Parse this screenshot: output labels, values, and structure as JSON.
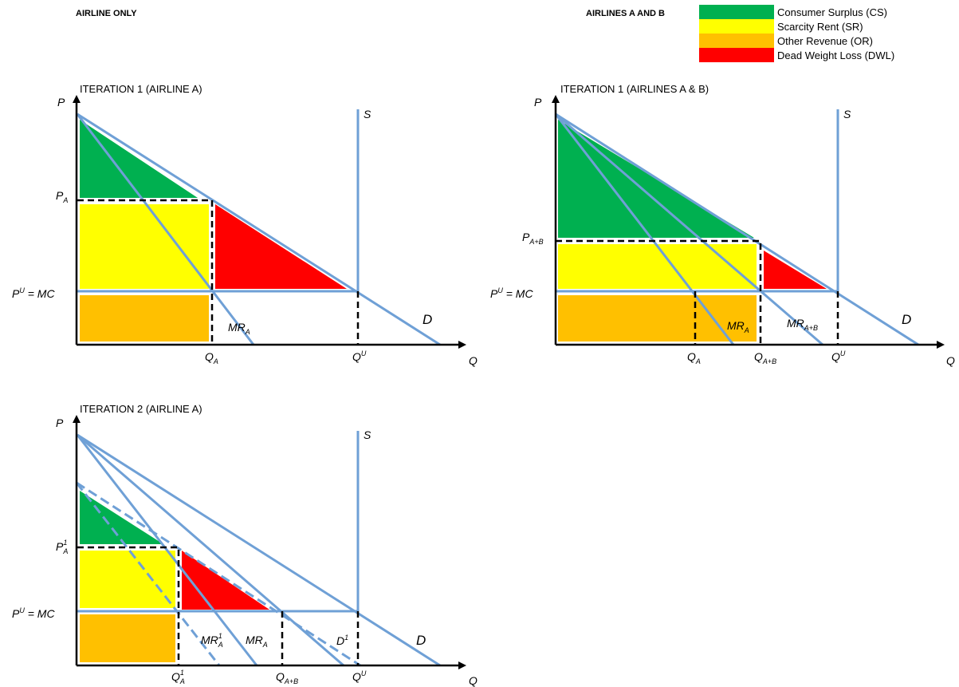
{
  "headers": {
    "left": "AIRLINE ONLY",
    "right": "AIRLINES A AND B"
  },
  "legend": [
    {
      "label": "Consumer Surplus (CS)",
      "color": "#00b050"
    },
    {
      "label": "Scarcity Rent (SR)",
      "color": "#ffff00"
    },
    {
      "label": "Other Revenue (OR)",
      "color": "#ffc000"
    },
    {
      "label": "Dead Weight Loss (DWL)",
      "color": "#ff0000"
    }
  ],
  "colors": {
    "curve": "#6fa0d6",
    "cs": "#00b050",
    "sr": "#ffff00",
    "or": "#ffc000",
    "dwl": "#ff0000"
  },
  "panel1": {
    "title": "ITERATION 1 (AIRLINE A)",
    "axis_p": "P",
    "axis_q": "Q",
    "supply": "S",
    "demand": "D",
    "price_label": "P",
    "price_sub": "A",
    "mc_label_p": "P",
    "mc_label_sup": "U",
    "mc_label_rest": " = MC",
    "mr_label": "MR",
    "mr_sub": "A",
    "q_label": "Q",
    "q_sub": "A",
    "qu_label": "Q",
    "qu_sup": "U"
  },
  "panel2": {
    "title": "ITERATION 1 (AIRLINES A & B)",
    "axis_p": "P",
    "axis_q": "Q",
    "supply": "S",
    "demand": "D",
    "price_label": "P",
    "price_sub": "A+B",
    "mc_label_p": "P",
    "mc_label_sup": "U",
    "mc_label_rest": " = MC",
    "mr_a_label": "MR",
    "mr_a_sub": "A",
    "mr_ab_label": "MR",
    "mr_ab_sub": "A+B",
    "qa_label": "Q",
    "qa_sub": "A",
    "qab_label": "Q",
    "qab_sub": "A+B",
    "qu_label": "Q",
    "qu_sup": "U"
  },
  "panel3": {
    "title": "ITERATION 2 (AIRLINE A)",
    "axis_p": "P",
    "axis_q": "Q",
    "supply": "S",
    "demand": "D",
    "d1_label": "D",
    "d1_sup": "1",
    "price_label": "P",
    "price_sup": "1",
    "price_sub": "A",
    "mc_label_p": "P",
    "mc_label_sup": "U",
    "mc_label_rest": " = MC",
    "mr1_label": "MR",
    "mr1_sup": "1",
    "mr1_sub": "A",
    "mr_label": "MR",
    "mr_sub": "A",
    "q1_label": "Q",
    "q1_sup": "1",
    "q1_sub": "A",
    "qab_label": "Q",
    "qab_sub": "A+B",
    "qu_label": "Q",
    "qu_sup": "U"
  }
}
